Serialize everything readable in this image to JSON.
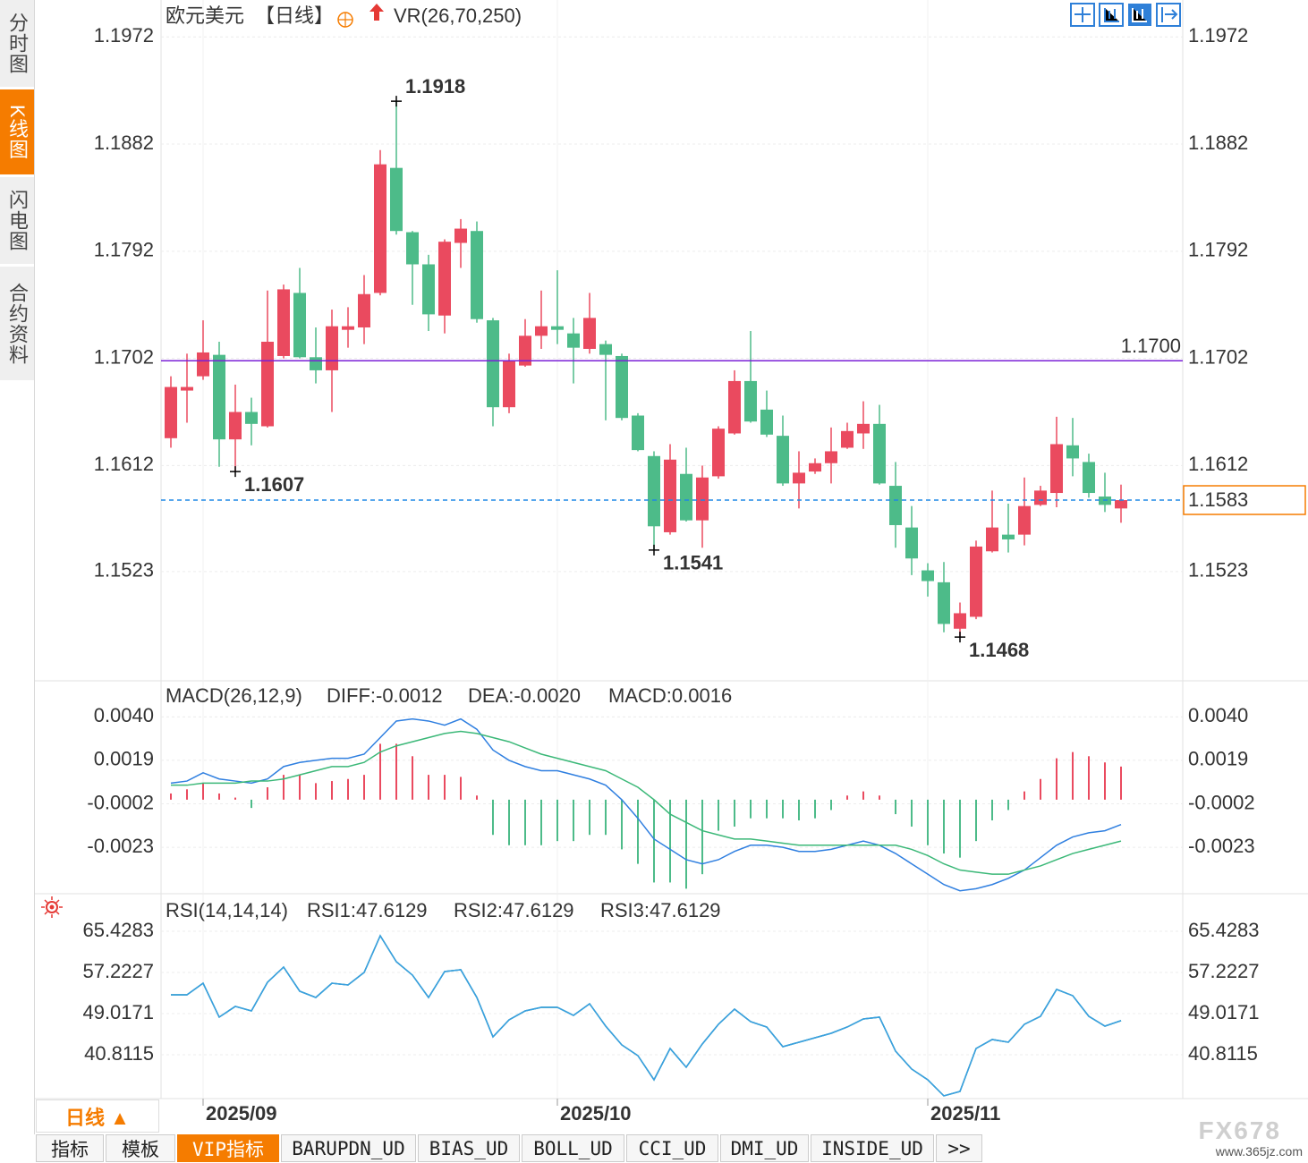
{
  "ui": {
    "sidebar_tabs": [
      "分时图",
      "K线图",
      "闪电图",
      "合约资料"
    ],
    "period_button": "日线 ▲",
    "tabs": [
      "指标",
      "模板",
      "VIP指标",
      "BARUPDN_UD",
      "BIAS_UD",
      "BOLL_UD",
      "CCI_UD",
      "DMI_UD",
      "INSIDE_UD",
      ">>"
    ],
    "watermark": "FX678",
    "watermark_url": "www.365jz.com"
  },
  "chart_data": [
    {
      "type": "candlestick",
      "title": "欧元美元",
      "period": "【日线】",
      "indicator": "VR(26,70,250)",
      "categories": [
        null,
        null,
        "2025/09",
        null,
        null,
        null,
        null,
        null,
        null,
        null,
        null,
        null,
        null,
        null,
        null,
        null,
        null,
        null,
        null,
        null,
        null,
        null,
        null,
        null,
        "2025/10",
        null,
        null,
        null,
        null,
        null,
        null,
        null,
        null,
        null,
        null,
        null,
        null,
        null,
        null,
        null,
        null,
        null,
        null,
        null,
        null,
        null,
        null,
        "2025/11",
        null,
        null,
        null,
        null,
        null,
        null,
        null,
        null,
        null,
        null,
        null,
        null
      ],
      "open": [
        1.1635,
        1.1675,
        1.1687,
        1.1705,
        1.1634,
        1.1657,
        1.1645,
        1.1704,
        1.1757,
        1.1703,
        1.1692,
        1.1726,
        1.1728,
        1.1757,
        1.1862,
        1.1808,
        1.1781,
        1.1738,
        1.1799,
        1.1809,
        1.1734,
        1.1661,
        1.1696,
        1.1721,
        1.1729,
        1.1723,
        1.171,
        1.1714,
        1.1704,
        1.1654,
        1.162,
        1.1556,
        1.1605,
        1.1566,
        1.1603,
        1.1639,
        1.1683,
        1.1659,
        1.1637,
        1.1597,
        1.1607,
        1.1614,
        1.1627,
        1.1639,
        1.1647,
        1.1595,
        1.156,
        1.1524,
        1.1514,
        1.1475,
        1.1485,
        1.154,
        1.1554,
        1.1554,
        1.1579,
        1.1589,
        1.1629,
        1.1615,
        1.1586,
        1.1576
      ],
      "high": [
        1.1687,
        1.1706,
        1.1734,
        1.1716,
        1.168,
        1.1669,
        1.1759,
        1.1764,
        1.1778,
        1.1728,
        1.1743,
        1.1745,
        1.1772,
        1.1877,
        1.1918,
        1.1809,
        1.1789,
        1.1802,
        1.1819,
        1.1817,
        1.1736,
        1.1706,
        1.1735,
        1.1759,
        1.1776,
        1.1736,
        1.1757,
        1.1717,
        1.1706,
        1.1656,
        1.1624,
        1.163,
        1.1627,
        1.1612,
        1.1645,
        1.1692,
        1.1725,
        1.1675,
        1.1654,
        1.1624,
        1.1618,
        1.1644,
        1.1648,
        1.1666,
        1.1663,
        1.1615,
        1.1578,
        1.153,
        1.1531,
        1.1497,
        1.1549,
        1.1591,
        1.158,
        1.1602,
        1.1595,
        1.1653,
        1.1652,
        1.1622,
        1.1606,
        1.1596
      ],
      "low": [
        1.1627,
        1.1648,
        1.1684,
        1.1611,
        1.1607,
        1.1629,
        1.1644,
        1.1702,
        1.1702,
        1.1681,
        1.1657,
        1.1711,
        1.1714,
        1.1755,
        1.1806,
        1.1747,
        1.1725,
        1.1723,
        1.1778,
        1.1732,
        1.1645,
        1.1656,
        1.1695,
        1.171,
        1.1714,
        1.1681,
        1.1706,
        1.165,
        1.165,
        1.1624,
        1.1541,
        1.1554,
        1.1565,
        1.1543,
        1.1601,
        1.1638,
        1.1648,
        1.1636,
        1.1595,
        1.1576,
        1.1605,
        1.1597,
        1.1626,
        1.1626,
        1.1596,
        1.1543,
        1.152,
        1.1502,
        1.1472,
        1.1468,
        1.1483,
        1.1539,
        1.1539,
        1.1545,
        1.1578,
        1.1577,
        1.1603,
        1.1585,
        1.1573,
        1.1564
      ],
      "close": [
        1.1678,
        1.1678,
        1.1707,
        1.1634,
        1.1657,
        1.1647,
        1.1716,
        1.176,
        1.1703,
        1.1692,
        1.1729,
        1.1729,
        1.1756,
        1.1865,
        1.1809,
        1.1781,
        1.1739,
        1.18,
        1.1811,
        1.1735,
        1.1661,
        1.17,
        1.1721,
        1.1729,
        1.1726,
        1.1711,
        1.1736,
        1.1705,
        1.1652,
        1.1625,
        1.1561,
        1.1617,
        1.1566,
        1.1602,
        1.1643,
        1.1683,
        1.1649,
        1.1638,
        1.1597,
        1.1606,
        1.1614,
        1.1624,
        1.1641,
        1.1647,
        1.1597,
        1.1562,
        1.1534,
        1.1515,
        1.1479,
        1.1488,
        1.1544,
        1.156,
        1.155,
        1.1578,
        1.1591,
        1.163,
        1.1618,
        1.1589,
        1.1579,
        1.1583
      ],
      "up_color": "#ea4a5f",
      "down_color": "#4dbb89",
      "ylim": [
        1.1432,
        1.2003
      ],
      "yticks": [
        1.1523,
        1.1612,
        1.1702,
        1.1792,
        1.1882,
        1.1972
      ],
      "grid": true,
      "hlines": [
        {
          "value": 1.17,
          "label": "1.1700",
          "color": "#7a1fd6"
        }
      ],
      "last_price": 1.1583,
      "last_price_color": "#f57c00",
      "last_line_color": "#1e88e5",
      "annotations": [
        1.1918,
        1.1607,
        1.1541,
        1.1468
      ]
    },
    {
      "type": "macd",
      "title": "MACD(26,12,9)",
      "ylim": [
        -0.0045,
        0.0057
      ],
      "yticks": [
        -0.0023,
        -0.0002,
        0.0019,
        {
          "value": 0.004,
          "label": "0.0040"
        }
      ],
      "grid": true,
      "series": [
        {
          "name": "DIFF:-0.0012",
          "type": "line",
          "color": "#2f7fe0",
          "values": [
            0.0008,
            0.0009,
            0.0013,
            0.001,
            0.0009,
            0.0008,
            0.001,
            0.0016,
            0.0018,
            0.0019,
            0.002,
            0.002,
            0.0022,
            0.003,
            0.0038,
            0.0039,
            0.0038,
            0.0036,
            0.0039,
            0.0034,
            0.0024,
            0.0019,
            0.0016,
            0.0014,
            0.0014,
            0.0012,
            0.001,
            0.0007,
            0.0,
            -0.0009,
            -0.0019,
            -0.0024,
            -0.0029,
            -0.0031,
            -0.0029,
            -0.0025,
            -0.0022,
            -0.0022,
            -0.0023,
            -0.0025,
            -0.0025,
            -0.0024,
            -0.0022,
            -0.002,
            -0.0022,
            -0.0026,
            -0.0031,
            -0.0036,
            -0.0041,
            -0.0044,
            -0.0043,
            -0.0041,
            -0.0038,
            -0.0034,
            -0.0028,
            -0.0022,
            -0.0018,
            -0.0016,
            -0.0015,
            -0.0012
          ]
        },
        {
          "name": "DEA:-0.0020",
          "type": "line",
          "color": "#3bb878",
          "values": [
            0.0007,
            0.0007,
            0.0008,
            0.0008,
            0.0008,
            0.0009,
            0.0009,
            0.001,
            0.0012,
            0.0014,
            0.0016,
            0.0016,
            0.0018,
            0.0023,
            0.0026,
            0.0028,
            0.003,
            0.0032,
            0.0033,
            0.0032,
            0.003,
            0.0028,
            0.0025,
            0.0022,
            0.002,
            0.0018,
            0.0016,
            0.0014,
            0.001,
            0.0006,
            0.0,
            -0.0007,
            -0.0011,
            -0.0015,
            -0.0017,
            -0.0019,
            -0.0019,
            -0.002,
            -0.0021,
            -0.0022,
            -0.0022,
            -0.0022,
            -0.0022,
            -0.0022,
            -0.0022,
            -0.0022,
            -0.0024,
            -0.0027,
            -0.0031,
            -0.0034,
            -0.0035,
            -0.0036,
            -0.0036,
            -0.0034,
            -0.0032,
            -0.0029,
            -0.0026,
            -0.0024,
            -0.0022,
            -0.002
          ]
        },
        {
          "name": "MACD:0.0016",
          "type": "bar",
          "color": "#ea4a5f",
          "negative_color": "#4dbb89",
          "legend_color": "#5aaae8",
          "values": [
            0.0003,
            0.0005,
            0.0008,
            0.0003,
            0.0001,
            -0.0004,
            0.0006,
            0.0012,
            0.0012,
            0.0008,
            0.0009,
            0.001,
            0.0012,
            0.0027,
            0.0027,
            0.0021,
            0.0012,
            0.0012,
            0.0011,
            0.0002,
            -0.0017,
            -0.0022,
            -0.0022,
            -0.0022,
            -0.002,
            -0.002,
            -0.0017,
            -0.0017,
            -0.0024,
            -0.0031,
            -0.004,
            -0.004,
            -0.0043,
            -0.0036,
            -0.0015,
            -0.0013,
            -0.0009,
            -0.0009,
            -0.0009,
            -0.001,
            -0.0009,
            -0.0005,
            0.0002,
            0.0004,
            0.0002,
            -0.0007,
            -0.0013,
            -0.0022,
            -0.0026,
            -0.0028,
            -0.002,
            -0.001,
            -0.0005,
            0.0004,
            0.001,
            0.002,
            0.0023,
            0.0021,
            0.0018,
            0.0016
          ]
        }
      ]
    },
    {
      "type": "rsi",
      "title": "RSI(14,14,14)",
      "ylim": [
        32.07,
        72.74
      ],
      "yticks": [
        40.8115,
        49.0171,
        57.2227,
        65.4283
      ],
      "grid": true,
      "series": [
        {
          "name": "RSI1:47.6129",
          "type": "line",
          "color": "#3a8ee6",
          "values": [
            52.76,
            52.76,
            55.08,
            48.31,
            50.45,
            49.55,
            55.26,
            58.29,
            53.48,
            52.23,
            55.08,
            54.73,
            57.22,
            64.54,
            59.36,
            56.69,
            52.23,
            57.4,
            57.76,
            52.23,
            44.38,
            47.77,
            49.55,
            50.27,
            50.27,
            48.66,
            50.98,
            46.52,
            42.78,
            40.63,
            35.82,
            42.06,
            38.32,
            42.95,
            46.88,
            49.91,
            47.41,
            46.34,
            42.42,
            43.31,
            44.2,
            45.09,
            46.34,
            47.95,
            48.31,
            41.53,
            37.96,
            35.82,
            32.61,
            33.5,
            42.06,
            43.85,
            43.31,
            46.88,
            48.48,
            53.84,
            52.59,
            48.48,
            46.52,
            47.6129
          ]
        },
        {
          "name": "RSI2:47.6129",
          "type": "line",
          "color": "#52c08a",
          "values": [
            52.76,
            52.76,
            55.08,
            48.31,
            50.45,
            49.55,
            55.26,
            58.29,
            53.48,
            52.23,
            55.08,
            54.73,
            57.22,
            64.54,
            59.36,
            56.69,
            52.23,
            57.4,
            57.76,
            52.23,
            44.38,
            47.77,
            49.55,
            50.27,
            50.27,
            48.66,
            50.98,
            46.52,
            42.78,
            40.63,
            35.82,
            42.06,
            38.32,
            42.95,
            46.88,
            49.91,
            47.41,
            46.34,
            42.42,
            43.31,
            44.2,
            45.09,
            46.34,
            47.95,
            48.31,
            41.53,
            37.96,
            35.82,
            32.61,
            33.5,
            42.06,
            43.85,
            43.31,
            46.88,
            48.48,
            53.84,
            52.59,
            48.48,
            46.52,
            47.6129
          ]
        },
        {
          "name": "RSI3:47.6129",
          "type": "line",
          "color": "#3a9fe2",
          "values": [
            52.76,
            52.76,
            55.08,
            48.31,
            50.45,
            49.55,
            55.26,
            58.29,
            53.48,
            52.23,
            55.08,
            54.73,
            57.22,
            64.54,
            59.36,
            56.69,
            52.23,
            57.4,
            57.76,
            52.23,
            44.38,
            47.77,
            49.55,
            50.27,
            50.27,
            48.66,
            50.98,
            46.52,
            42.78,
            40.63,
            35.82,
            42.06,
            38.32,
            42.95,
            46.88,
            49.91,
            47.41,
            46.34,
            42.42,
            43.31,
            44.2,
            45.09,
            46.34,
            47.95,
            48.31,
            41.53,
            37.96,
            35.82,
            32.61,
            33.5,
            42.06,
            43.85,
            43.31,
            46.88,
            48.48,
            53.84,
            52.59,
            48.48,
            46.52,
            47.6129
          ]
        }
      ]
    }
  ]
}
